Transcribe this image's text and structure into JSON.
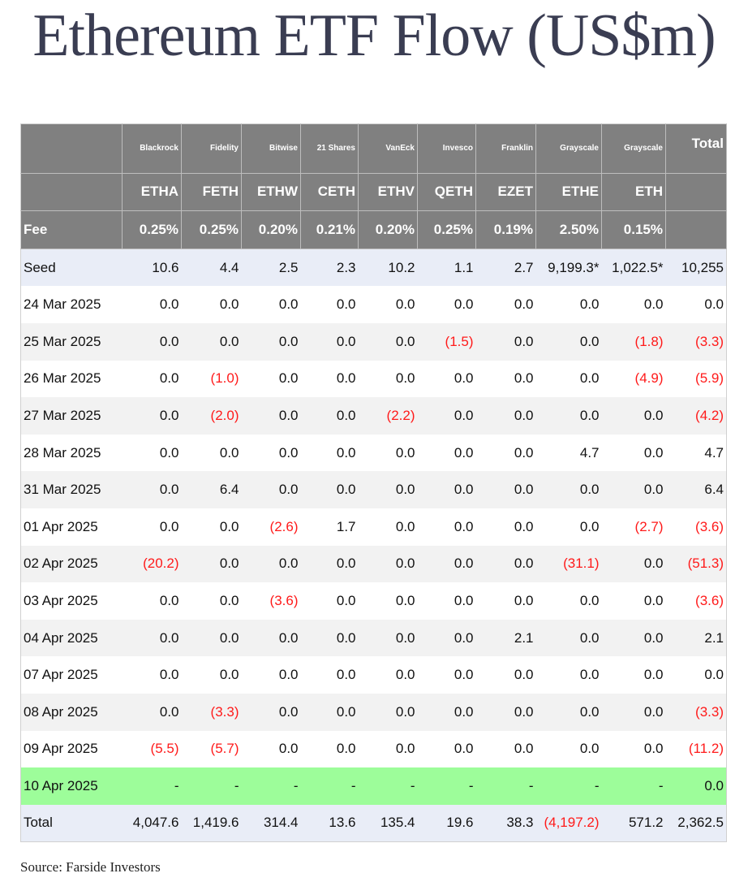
{
  "title": "Ethereum ETF Flow (US$m)",
  "colors": {
    "header_bg": "#808080",
    "seed_total_bg": "#e9edf7",
    "alt_row_bg": "#f2f2f2",
    "today_bg": "#9dfd9a",
    "negative": "#ff1a1a"
  },
  "header": {
    "issuers": [
      "Blackrock",
      "Fidelity",
      "Bitwise",
      "21 Shares",
      "VanEck",
      "Invesco",
      "Franklin",
      "Grayscale",
      "Grayscale"
    ],
    "total_label": "Total",
    "tickers": [
      "ETHA",
      "FETH",
      "ETHW",
      "CETH",
      "ETHV",
      "QETH",
      "EZET",
      "ETHE",
      "ETH"
    ],
    "fee_label": "Fee",
    "fees": [
      "0.25%",
      "0.25%",
      "0.20%",
      "0.21%",
      "0.20%",
      "0.25%",
      "0.19%",
      "2.50%",
      "0.15%"
    ]
  },
  "rows": [
    {
      "label": "Seed",
      "kind": "seed",
      "values": [
        "10.6",
        "4.4",
        "2.5",
        "2.3",
        "10.2",
        "1.1",
        "2.7",
        "9,199.3*",
        "1,022.5*",
        "10,255"
      ]
    },
    {
      "label": "24 Mar 2025",
      "kind": "",
      "values": [
        "0.0",
        "0.0",
        "0.0",
        "0.0",
        "0.0",
        "0.0",
        "0.0",
        "0.0",
        "0.0",
        "0.0"
      ]
    },
    {
      "label": "25 Mar 2025",
      "kind": "alt",
      "values": [
        "0.0",
        "0.0",
        "0.0",
        "0.0",
        "0.0",
        "(1.5)",
        "0.0",
        "0.0",
        "(1.8)",
        "(3.3)"
      ]
    },
    {
      "label": "26 Mar 2025",
      "kind": "",
      "values": [
        "0.0",
        "(1.0)",
        "0.0",
        "0.0",
        "0.0",
        "0.0",
        "0.0",
        "0.0",
        "(4.9)",
        "(5.9)"
      ]
    },
    {
      "label": "27 Mar 2025",
      "kind": "alt",
      "values": [
        "0.0",
        "(2.0)",
        "0.0",
        "0.0",
        "(2.2)",
        "0.0",
        "0.0",
        "0.0",
        "0.0",
        "(4.2)"
      ]
    },
    {
      "label": "28 Mar 2025",
      "kind": "",
      "values": [
        "0.0",
        "0.0",
        "0.0",
        "0.0",
        "0.0",
        "0.0",
        "0.0",
        "4.7",
        "0.0",
        "4.7"
      ]
    },
    {
      "label": "31 Mar 2025",
      "kind": "alt",
      "values": [
        "0.0",
        "6.4",
        "0.0",
        "0.0",
        "0.0",
        "0.0",
        "0.0",
        "0.0",
        "0.0",
        "6.4"
      ]
    },
    {
      "label": "01 Apr 2025",
      "kind": "",
      "values": [
        "0.0",
        "0.0",
        "(2.6)",
        "1.7",
        "0.0",
        "0.0",
        "0.0",
        "0.0",
        "(2.7)",
        "(3.6)"
      ]
    },
    {
      "label": "02 Apr 2025",
      "kind": "alt",
      "values": [
        "(20.2)",
        "0.0",
        "0.0",
        "0.0",
        "0.0",
        "0.0",
        "0.0",
        "(31.1)",
        "0.0",
        "(51.3)"
      ]
    },
    {
      "label": "03 Apr 2025",
      "kind": "",
      "values": [
        "0.0",
        "0.0",
        "(3.6)",
        "0.0",
        "0.0",
        "0.0",
        "0.0",
        "0.0",
        "0.0",
        "(3.6)"
      ]
    },
    {
      "label": "04 Apr 2025",
      "kind": "alt",
      "values": [
        "0.0",
        "0.0",
        "0.0",
        "0.0",
        "0.0",
        "0.0",
        "2.1",
        "0.0",
        "0.0",
        "2.1"
      ]
    },
    {
      "label": "07 Apr 2025",
      "kind": "",
      "values": [
        "0.0",
        "0.0",
        "0.0",
        "0.0",
        "0.0",
        "0.0",
        "0.0",
        "0.0",
        "0.0",
        "0.0"
      ]
    },
    {
      "label": "08 Apr 2025",
      "kind": "alt",
      "values": [
        "0.0",
        "(3.3)",
        "0.0",
        "0.0",
        "0.0",
        "0.0",
        "0.0",
        "0.0",
        "0.0",
        "(3.3)"
      ]
    },
    {
      "label": "09 Apr 2025",
      "kind": "",
      "values": [
        "(5.5)",
        "(5.7)",
        "0.0",
        "0.0",
        "0.0",
        "0.0",
        "0.0",
        "0.0",
        "0.0",
        "(11.2)"
      ]
    },
    {
      "label": "10 Apr 2025",
      "kind": "today",
      "values": [
        "-",
        "-",
        "-",
        "-",
        "-",
        "-",
        "-",
        "-",
        "-",
        "0.0"
      ]
    },
    {
      "label": "Total",
      "kind": "total",
      "values": [
        "4,047.6",
        "1,419.6",
        "314.4",
        "13.6",
        "135.4",
        "19.6",
        "38.3",
        "(4,197.2)",
        "571.2",
        "2,362.5"
      ]
    }
  ],
  "source": "Source: Farside Investors"
}
